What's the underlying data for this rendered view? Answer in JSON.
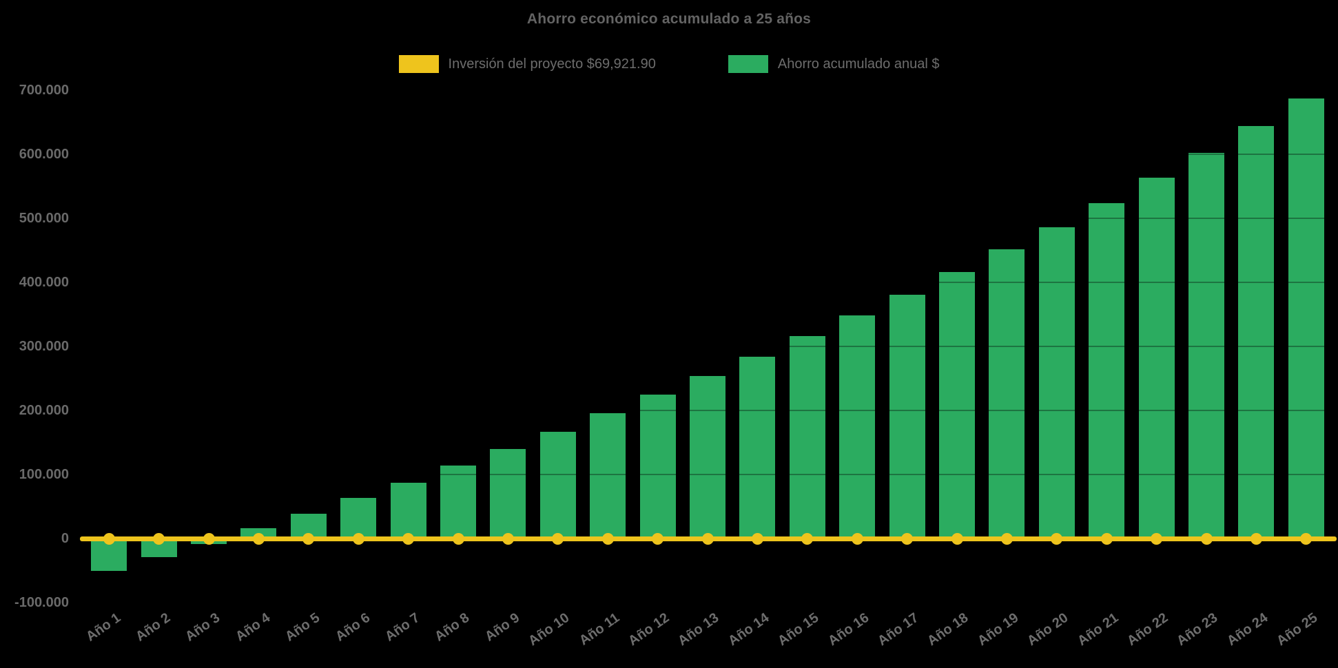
{
  "title": "Ahorro económico acumulado a 25 años",
  "legend": [
    {
      "label": "Inversión del proyecto $69,921.90",
      "color": "#eec41d"
    },
    {
      "label": "Ahorro acumulado anual $",
      "color": "#2bac60"
    }
  ],
  "colors": {
    "background": "#000000",
    "bar_green": "#2bac60",
    "line_yellow": "#eec41d",
    "title_text": "#636363",
    "tick_text": "#6a6a6a"
  },
  "chart_data": {
    "type": "bar",
    "title": "Ahorro económico acumulado a 25 años",
    "categories": [
      "Año 1",
      "Año 2",
      "Año 3",
      "Año 4",
      "Año 5",
      "Año 6",
      "Año 7",
      "Año 8",
      "Año 9",
      "Año 10",
      "Año 11",
      "Año 12",
      "Año 13",
      "Año 14",
      "Año 15",
      "Año 16",
      "Año 17",
      "Año 18",
      "Año 19",
      "Año 20",
      "Año 21",
      "Año 22",
      "Año 23",
      "Año 24",
      "Año 25"
    ],
    "series": [
      {
        "name": "Inversión del proyecto $69,921.90",
        "type": "line",
        "color": "#eec41d",
        "values": [
          0,
          0,
          0,
          0,
          0,
          0,
          0,
          0,
          0,
          0,
          0,
          0,
          0,
          0,
          0,
          0,
          0,
          0,
          0,
          0,
          0,
          0,
          0,
          0,
          0
        ]
      },
      {
        "name": "Ahorro acumulado anual $",
        "type": "bar",
        "color": "#2bac60",
        "values": [
          -50000,
          -29000,
          -8500,
          16000,
          38500,
          63500,
          87500,
          114000,
          140000,
          167000,
          196000,
          225000,
          254000,
          284000,
          316000,
          348000,
          381000,
          416000,
          452000,
          486000,
          524000,
          563000,
          602000,
          644000,
          687000
        ]
      }
    ],
    "ylim": [
      -100000,
      700000
    ],
    "ytick_step": 100000,
    "ytick_labels": [
      "-100.000",
      "0",
      "100.000",
      "200.000",
      "300.000",
      "400.000",
      "500.000",
      "600.000",
      "700.000"
    ],
    "xlabel": "",
    "ylabel": "",
    "grid": "horizontal-faint",
    "legend_position": "top"
  }
}
